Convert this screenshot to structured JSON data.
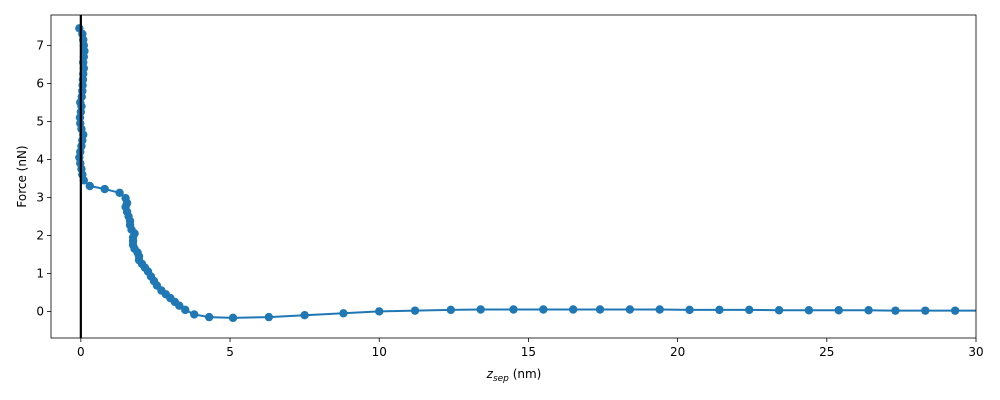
{
  "chart_data": {
    "type": "line",
    "xlabel_main": "z",
    "xlabel_sub": "sep",
    "xlabel_unit": " (nm)",
    "ylabel": "Force (nN)",
    "xlim": [
      -1,
      30
    ],
    "ylim": [
      -0.7,
      7.8
    ],
    "xticks": [
      0,
      5,
      10,
      15,
      20,
      25,
      30
    ],
    "yticks": [
      0,
      1,
      2,
      3,
      4,
      5,
      6,
      7
    ],
    "vline_x": 0,
    "grid": false,
    "series": [
      {
        "color": "#1f77b4",
        "marker": "circle",
        "points": [
          [
            -0.05,
            7.45
          ],
          [
            0.05,
            7.3
          ],
          [
            0.08,
            7.15
          ],
          [
            0.1,
            7.0
          ],
          [
            0.12,
            6.85
          ],
          [
            0.1,
            6.7
          ],
          [
            0.08,
            6.55
          ],
          [
            0.1,
            6.4
          ],
          [
            0.08,
            6.25
          ],
          [
            0.07,
            6.1
          ],
          [
            0.06,
            5.95
          ],
          [
            0.05,
            5.8
          ],
          [
            0.03,
            5.65
          ],
          [
            -0.02,
            5.5
          ],
          [
            0.02,
            5.4
          ],
          [
            0.0,
            5.25
          ],
          [
            -0.03,
            5.1
          ],
          [
            -0.02,
            4.95
          ],
          [
            0.02,
            4.8
          ],
          [
            0.08,
            4.65
          ],
          [
            0.05,
            4.5
          ],
          [
            0.02,
            4.35
          ],
          [
            -0.02,
            4.2
          ],
          [
            -0.05,
            4.05
          ],
          [
            -0.02,
            3.9
          ],
          [
            0.02,
            3.75
          ],
          [
            0.05,
            3.6
          ],
          [
            0.1,
            3.45
          ],
          [
            0.3,
            3.3
          ],
          [
            0.8,
            3.22
          ],
          [
            1.3,
            3.12
          ],
          [
            1.5,
            2.98
          ],
          [
            1.55,
            2.85
          ],
          [
            1.5,
            2.75
          ],
          [
            1.55,
            2.62
          ],
          [
            1.6,
            2.5
          ],
          [
            1.65,
            2.38
          ],
          [
            1.65,
            2.27
          ],
          [
            1.7,
            2.15
          ],
          [
            1.8,
            2.05
          ],
          [
            1.75,
            1.95
          ],
          [
            1.75,
            1.85
          ],
          [
            1.75,
            1.75
          ],
          [
            1.8,
            1.65
          ],
          [
            1.9,
            1.55
          ],
          [
            1.95,
            1.45
          ],
          [
            1.95,
            1.35
          ],
          [
            2.05,
            1.25
          ],
          [
            2.15,
            1.15
          ],
          [
            2.25,
            1.05
          ],
          [
            2.35,
            0.92
          ],
          [
            2.45,
            0.8
          ],
          [
            2.55,
            0.68
          ],
          [
            2.7,
            0.55
          ],
          [
            2.85,
            0.45
          ],
          [
            3.0,
            0.35
          ],
          [
            3.15,
            0.25
          ],
          [
            3.3,
            0.15
          ],
          [
            3.5,
            0.04
          ],
          [
            3.8,
            -0.08
          ],
          [
            4.3,
            -0.15
          ],
          [
            5.1,
            -0.17
          ],
          [
            6.3,
            -0.15
          ],
          [
            7.5,
            -0.1
          ],
          [
            8.8,
            -0.05
          ],
          [
            10.0,
            0.0
          ],
          [
            11.2,
            0.02
          ],
          [
            12.4,
            0.04
          ],
          [
            13.4,
            0.05
          ],
          [
            14.5,
            0.05
          ],
          [
            15.5,
            0.05
          ],
          [
            16.5,
            0.05
          ],
          [
            17.4,
            0.05
          ],
          [
            18.4,
            0.05
          ],
          [
            19.4,
            0.05
          ],
          [
            20.4,
            0.04
          ],
          [
            21.4,
            0.04
          ],
          [
            22.4,
            0.04
          ],
          [
            23.4,
            0.03
          ],
          [
            24.4,
            0.03
          ],
          [
            25.4,
            0.03
          ],
          [
            26.4,
            0.03
          ],
          [
            27.3,
            0.02
          ],
          [
            28.3,
            0.02
          ],
          [
            29.3,
            0.02
          ],
          [
            30.3,
            0.02
          ]
        ]
      }
    ]
  }
}
